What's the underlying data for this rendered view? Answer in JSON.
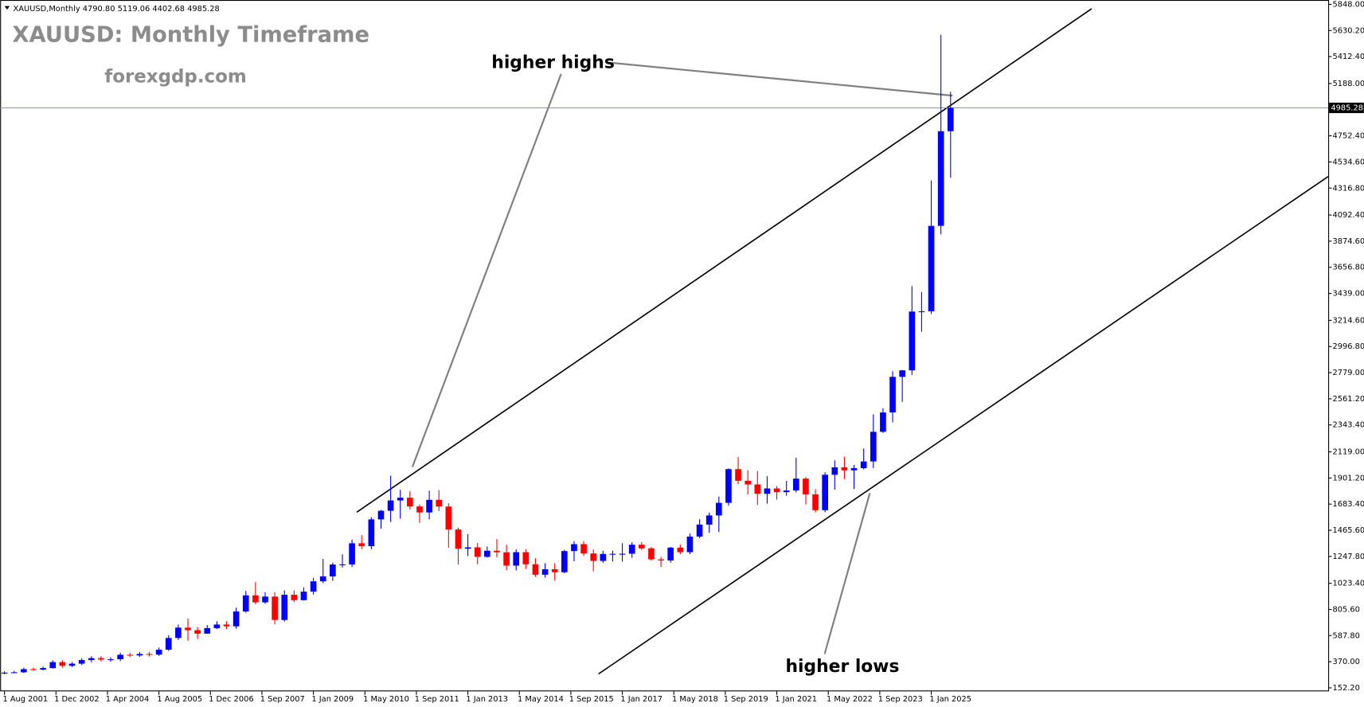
{
  "chart_data": {
    "type": "candlestick",
    "header": "XAUUSD,Monthly  4790.80 5119.06 4402.68 4985.28",
    "title": "XAUUSD: Monthly Timeframe",
    "subtitle": "forexgdp.com",
    "annotations": [
      "higher highs",
      "higher lows"
    ],
    "up_color": "#0000ff",
    "down_color": "#ff0000",
    "x": [
      0,
      3,
      6,
      9,
      12,
      15,
      18,
      21,
      24,
      27,
      30,
      33,
      36,
      39,
      42,
      45,
      48,
      51,
      54,
      57,
      60,
      63,
      66,
      69,
      72,
      75,
      78,
      81,
      84,
      87,
      90,
      93,
      96,
      99,
      102,
      105,
      108,
      111,
      114,
      117,
      120,
      123,
      126,
      129,
      132,
      135,
      138,
      141,
      144,
      147,
      150,
      153,
      156,
      159,
      162,
      165,
      168,
      171,
      174,
      177,
      180,
      183,
      186,
      189,
      192,
      195,
      198,
      201,
      204,
      207,
      210,
      213,
      216,
      219,
      222,
      225,
      228,
      231,
      234,
      237,
      240,
      243,
      246,
      249,
      252,
      255,
      258,
      261,
      264,
      267,
      270,
      273,
      276,
      279,
      282,
      285,
      288,
      291,
      294
    ],
    "open": [
      272,
      279,
      282,
      308,
      304,
      317,
      367,
      336,
      354,
      384,
      400,
      388,
      391,
      428,
      422,
      435,
      429,
      470,
      568,
      654,
      633,
      604,
      650,
      680,
      665,
      789,
      923,
      865,
      913,
      718,
      928,
      883,
      954,
      1040,
      1081,
      1180,
      1181,
      1357,
      1333,
      1556,
      1628,
      1714,
      1737,
      1664,
      1614,
      1719,
      1663,
      1472,
      1312,
      1323,
      1244,
      1295,
      1282,
      1171,
      1283,
      1182,
      1095,
      1141,
      1116,
      1292,
      1350,
      1272,
      1210,
      1268,
      1269,
      1270,
      1345,
      1315,
      1223,
      1214,
      1321,
      1283,
      1413,
      1513,
      1589,
      1694,
      1975,
      1878,
      1847,
      1769,
      1814,
      1783,
      1797,
      1896,
      1765,
      1633,
      1928,
      1990,
      1965,
      1983,
      2039,
      2286,
      2447,
      2744,
      2798,
      3288,
      3290,
      4002,
      4790.8
    ],
    "high": [
      290,
      293,
      320,
      320,
      330,
      382,
      382,
      368,
      399,
      416,
      416,
      407,
      445,
      445,
      452,
      452,
      489,
      591,
      680,
      730,
      659,
      676,
      707,
      707,
      820,
      960,
      1033,
      950,
      950,
      965,
      965,
      990,
      1070,
      1227,
      1196,
      1265,
      1388,
      1424,
      1575,
      1635,
      1920,
      1803,
      1790,
      1680,
      1796,
      1800,
      1690,
      1487,
      1434,
      1360,
      1330,
      1392,
      1345,
      1307,
      1308,
      1232,
      1191,
      1191,
      1303,
      1375,
      1375,
      1306,
      1295,
      1296,
      1358,
      1366,
      1366,
      1326,
      1243,
      1326,
      1346,
      1438,
      1557,
      1612,
      1747,
      1981,
      2075,
      1965,
      1959,
      1916,
      1834,
      1877,
      2070,
      1909,
      1807,
      1949,
      2048,
      2079,
      2009,
      2146,
      2431,
      2483,
      2790,
      2801,
      3500,
      3451,
      4381,
      5595,
      5119.06
    ],
    "low": [
      265,
      276,
      276,
      294,
      298,
      313,
      320,
      326,
      343,
      366,
      373,
      371,
      374,
      410,
      411,
      413,
      418,
      460,
      551,
      544,
      560,
      603,
      642,
      642,
      646,
      778,
      850,
      852,
      681,
      705,
      866,
      880,
      930,
      1025,
      1045,
      1155,
      1158,
      1309,
      1308,
      1478,
      1535,
      1562,
      1640,
      1527,
      1556,
      1626,
      1321,
      1180,
      1251,
      1182,
      1238,
      1240,
      1132,
      1131,
      1143,
      1077,
      1072,
      1046,
      1107,
      1207,
      1252,
      1123,
      1194,
      1205,
      1204,
      1236,
      1302,
      1212,
      1160,
      1196,
      1266,
      1266,
      1400,
      1445,
      1451,
      1670,
      1848,
      1764,
      1676,
      1687,
      1721,
      1753,
      1780,
      1680,
      1615,
      1616,
      1804,
      1893,
      1810,
      1973,
      1984,
      2277,
      2365,
      2536,
      2760,
      3120,
      3268,
      3931,
      4402.68
    ],
    "close": [
      279,
      282,
      308,
      304,
      317,
      367,
      336,
      354,
      384,
      400,
      388,
      391,
      428,
      422,
      435,
      429,
      470,
      568,
      654,
      633,
      604,
      650,
      680,
      665,
      789,
      923,
      865,
      913,
      718,
      928,
      883,
      954,
      1040,
      1081,
      1180,
      1181,
      1357,
      1333,
      1556,
      1628,
      1714,
      1737,
      1664,
      1614,
      1719,
      1663,
      1472,
      1312,
      1323,
      1244,
      1295,
      1282,
      1171,
      1283,
      1182,
      1095,
      1141,
      1116,
      1292,
      1350,
      1272,
      1210,
      1268,
      1269,
      1270,
      1345,
      1315,
      1223,
      1214,
      1321,
      1283,
      1413,
      1513,
      1589,
      1694,
      1975,
      1878,
      1847,
      1769,
      1814,
      1783,
      1797,
      1896,
      1765,
      1633,
      1928,
      1990,
      1965,
      1983,
      2039,
      2286,
      2447,
      2744,
      2798,
      3288,
      3290,
      4002,
      4790.8,
      4985.28
    ],
    "last_price": 4985.28,
    "ylim": [
      152.2,
      5848
    ],
    "yticks": [
      {
        "value": 152.2,
        "label": "152.20"
      },
      {
        "value": 370,
        "label": "370.00"
      },
      {
        "value": 587.8,
        "label": "587.80"
      },
      {
        "value": 805.6,
        "label": "805.60"
      },
      {
        "value": 1023.4,
        "label": "1023.40"
      },
      {
        "value": 1247.8,
        "label": "1247.80"
      },
      {
        "value": 1465.6,
        "label": "1465.60"
      },
      {
        "value": 1683.4,
        "label": "1683.40"
      },
      {
        "value": 1901.2,
        "label": "1901.20"
      },
      {
        "value": 2119,
        "label": "2119.00"
      },
      {
        "value": 2343.4,
        "label": "2343.40"
      },
      {
        "value": 2561.2,
        "label": "2561.20"
      },
      {
        "value": 2779,
        "label": "2779.00"
      },
      {
        "value": 2996.8,
        "label": "2996.80"
      },
      {
        "value": 3214.6,
        "label": "3214.60"
      },
      {
        "value": 3439,
        "label": "3439.00"
      },
      {
        "value": 3656.8,
        "label": "3656.80"
      },
      {
        "value": 3874.6,
        "label": "3874.60"
      },
      {
        "value": 4092.4,
        "label": "4092.40"
      },
      {
        "value": 4316.8,
        "label": "4316.80"
      },
      {
        "value": 4534.6,
        "label": "4534.60"
      },
      {
        "value": 4752.4,
        "label": "4752.40"
      },
      {
        "value": 5188,
        "label": "5188.00"
      },
      {
        "value": 5412.4,
        "label": "5412.40"
      },
      {
        "value": 5630.2,
        "label": "5630.20"
      },
      {
        "value": 5848,
        "label": "5848.00"
      }
    ],
    "xticks": [
      {
        "value": 0,
        "label": "1 Aug 2001"
      },
      {
        "value": 16,
        "label": "1 Dec 2002"
      },
      {
        "value": 32,
        "label": "1 Apr 2004"
      },
      {
        "value": 48,
        "label": "1 Aug 2005"
      },
      {
        "value": 64,
        "label": "1 Dec 2006"
      },
      {
        "value": 80,
        "label": "1 Sep 2007"
      },
      {
        "value": 96,
        "label": "1 Jan 2009"
      },
      {
        "value": 112,
        "label": "1 May 2010"
      },
      {
        "value": 128,
        "label": "1 Sep 2011"
      },
      {
        "value": 144,
        "label": "1 Jan 2013"
      },
      {
        "value": 160,
        "label": "1 May 2014"
      },
      {
        "value": 176,
        "label": "1 Sep 2015"
      },
      {
        "value": 192,
        "label": "1 Jan 2017"
      },
      {
        "value": 208,
        "label": "1 May 2018"
      },
      {
        "value": 224,
        "label": "1 Sep 2019"
      },
      {
        "value": 240,
        "label": "1 Jan 2021"
      },
      {
        "value": 256,
        "label": "1 May 2022"
      },
      {
        "value": 272,
        "label": "1 Sep 2023"
      },
      {
        "value": 288,
        "label": "1 Jan 2025"
      }
    ]
  }
}
